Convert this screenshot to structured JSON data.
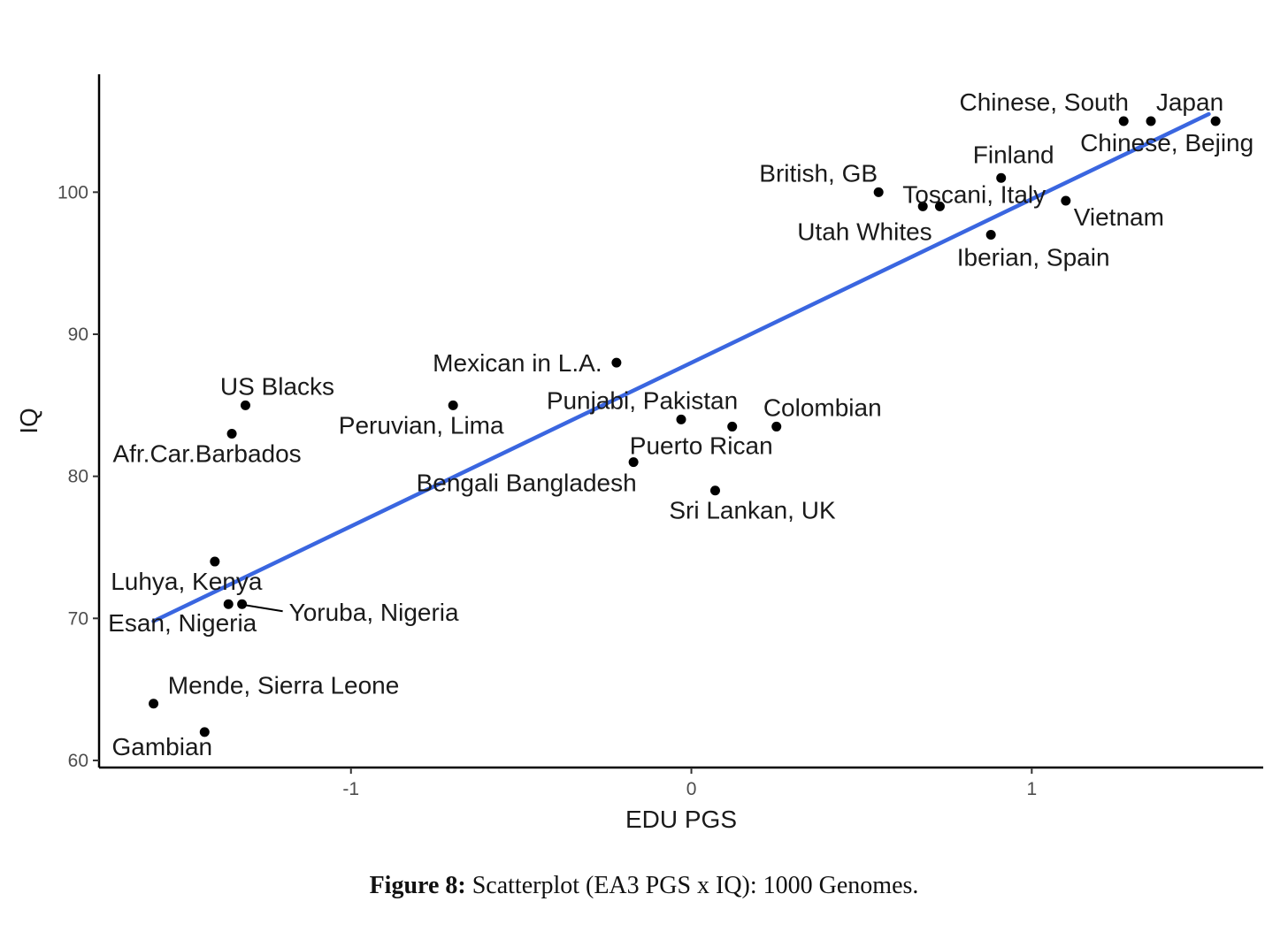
{
  "caption": {
    "label": "Figure 8:",
    "text": "Scatterplot (EA3 PGS x IQ): 1000 Genomes."
  },
  "chart_data": {
    "type": "scatter",
    "xlabel": "EDU PGS",
    "ylabel": "IQ",
    "xlim": [
      -1.74,
      1.68
    ],
    "ylim": [
      59.5,
      108.3
    ],
    "xticks": [
      -1,
      0,
      1
    ],
    "xtick_labels": [
      "-1",
      "0",
      "1"
    ],
    "yticks": [
      60,
      70,
      80,
      90,
      100
    ],
    "ytick_labels": [
      "60",
      "70",
      "80",
      "90",
      "100"
    ],
    "grid": false,
    "line_color": "#3a66e0",
    "point_color": "#000000",
    "points": [
      {
        "label": "Chinese, South",
        "x": 1.27,
        "y": 105
      },
      {
        "label": "Japan",
        "x": 1.35,
        "y": 105
      },
      {
        "label": "Chinese, Bejing",
        "x": 1.54,
        "y": 105
      },
      {
        "label": "Finland",
        "x": 0.91,
        "y": 101
      },
      {
        "label": "British, GB",
        "x": 0.55,
        "y": 100
      },
      {
        "label": "Toscani, Italy",
        "x": 0.68,
        "y": 99
      },
      {
        "label": "Utah Whites",
        "x": 0.73,
        "y": 99
      },
      {
        "label": "Vietnam",
        "x": 1.1,
        "y": 99.4
      },
      {
        "label": "Iberian, Spain",
        "x": 0.88,
        "y": 97
      },
      {
        "label": "Mexican in L.A.",
        "x": -0.22,
        "y": 88
      },
      {
        "label": "US Blacks",
        "x": -1.31,
        "y": 85
      },
      {
        "label": "Peruvian, Lima",
        "x": -0.7,
        "y": 85
      },
      {
        "label": "Punjabi, Pakistan",
        "x": -0.03,
        "y": 84
      },
      {
        "label": "Colombian",
        "x": 0.25,
        "y": 83.5
      },
      {
        "label": "Puerto Rican",
        "x": 0.12,
        "y": 83.5
      },
      {
        "label": "Afr.Car.Barbados",
        "x": -1.35,
        "y": 83
      },
      {
        "label": "Bengali Bangladesh",
        "x": -0.17,
        "y": 81
      },
      {
        "label": "Sri Lankan, UK",
        "x": 0.07,
        "y": 79
      },
      {
        "label": "Luhya, Kenya",
        "x": -1.4,
        "y": 74
      },
      {
        "label": "Esan, Nigeria",
        "x": -1.36,
        "y": 71
      },
      {
        "label": "Yoruba, Nigeria",
        "x": -1.32,
        "y": 71
      },
      {
        "label": "Mende, Sierra Leone",
        "x": -1.58,
        "y": 64
      },
      {
        "label": "Gambian",
        "x": -1.43,
        "y": 62
      }
    ],
    "fit_line": {
      "x": [
        -1.58,
        1.52
      ],
      "y": [
        69.8,
        105.5
      ]
    }
  }
}
